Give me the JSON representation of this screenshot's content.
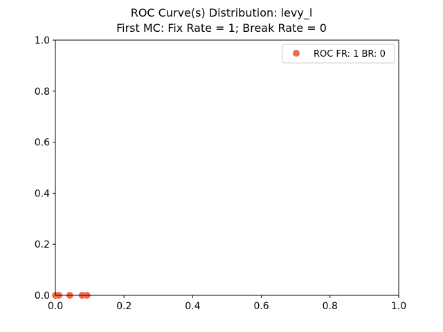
{
  "chart_data": {
    "type": "scatter",
    "title": "ROC Curve(s) Distribution: levy_l",
    "subtitle": "First MC: Fix Rate = 1; Break Rate = 0",
    "xlabel": "",
    "ylabel": "",
    "xlim": [
      0.0,
      1.0
    ],
    "ylim": [
      0.0,
      1.0
    ],
    "x_ticks": [
      "0.0",
      "0.2",
      "0.4",
      "0.6",
      "0.8",
      "1.0"
    ],
    "y_ticks": [
      "0.0",
      "0.2",
      "0.4",
      "0.6",
      "0.8",
      "1.0"
    ],
    "grid": false,
    "legend_position": "top-right",
    "series": [
      {
        "name": "ROC FR: 1 BR: 0",
        "color": "#f4694a",
        "points": [
          {
            "x": 0.0,
            "y": 0.0
          },
          {
            "x": 0.01,
            "y": 0.0
          },
          {
            "x": 0.042,
            "y": 0.0
          },
          {
            "x": 0.078,
            "y": 0.0
          },
          {
            "x": 0.092,
            "y": 0.0
          }
        ]
      }
    ]
  }
}
